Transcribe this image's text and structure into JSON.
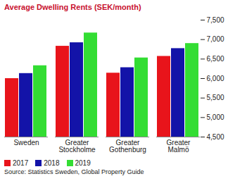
{
  "chart_data": {
    "type": "bar",
    "title": "Average Dwelling Rents (SEK/month)",
    "caption": "Source: Statistics Sweden, Global Property Guide",
    "categories": [
      "Sweden",
      "Greater Stockholme",
      "Greater Gothenburg",
      "Greater Malmö"
    ],
    "series": [
      {
        "name": "2017",
        "color": "#e8141b",
        "values": [
          6000,
          6830,
          6140,
          6570
        ]
      },
      {
        "name": "2018",
        "color": "#1313a8",
        "values": [
          6130,
          6920,
          6280,
          6770
        ]
      },
      {
        "name": "2019",
        "color": "#33dd33",
        "values": [
          6330,
          7170,
          6530,
          6900
        ]
      }
    ],
    "ylim": [
      4500,
      7500
    ],
    "yticks": [
      {
        "value": 4500,
        "label": "4,500"
      },
      {
        "value": 5000,
        "label": "5,000"
      },
      {
        "value": 5500,
        "label": "5,500"
      },
      {
        "value": 6000,
        "label": "6,000"
      },
      {
        "value": 6500,
        "label": "6,500"
      },
      {
        "value": 7000,
        "label": "7,000"
      },
      {
        "value": 7500,
        "label": "7,500"
      }
    ],
    "grid": false,
    "legend": "bottom-left"
  }
}
